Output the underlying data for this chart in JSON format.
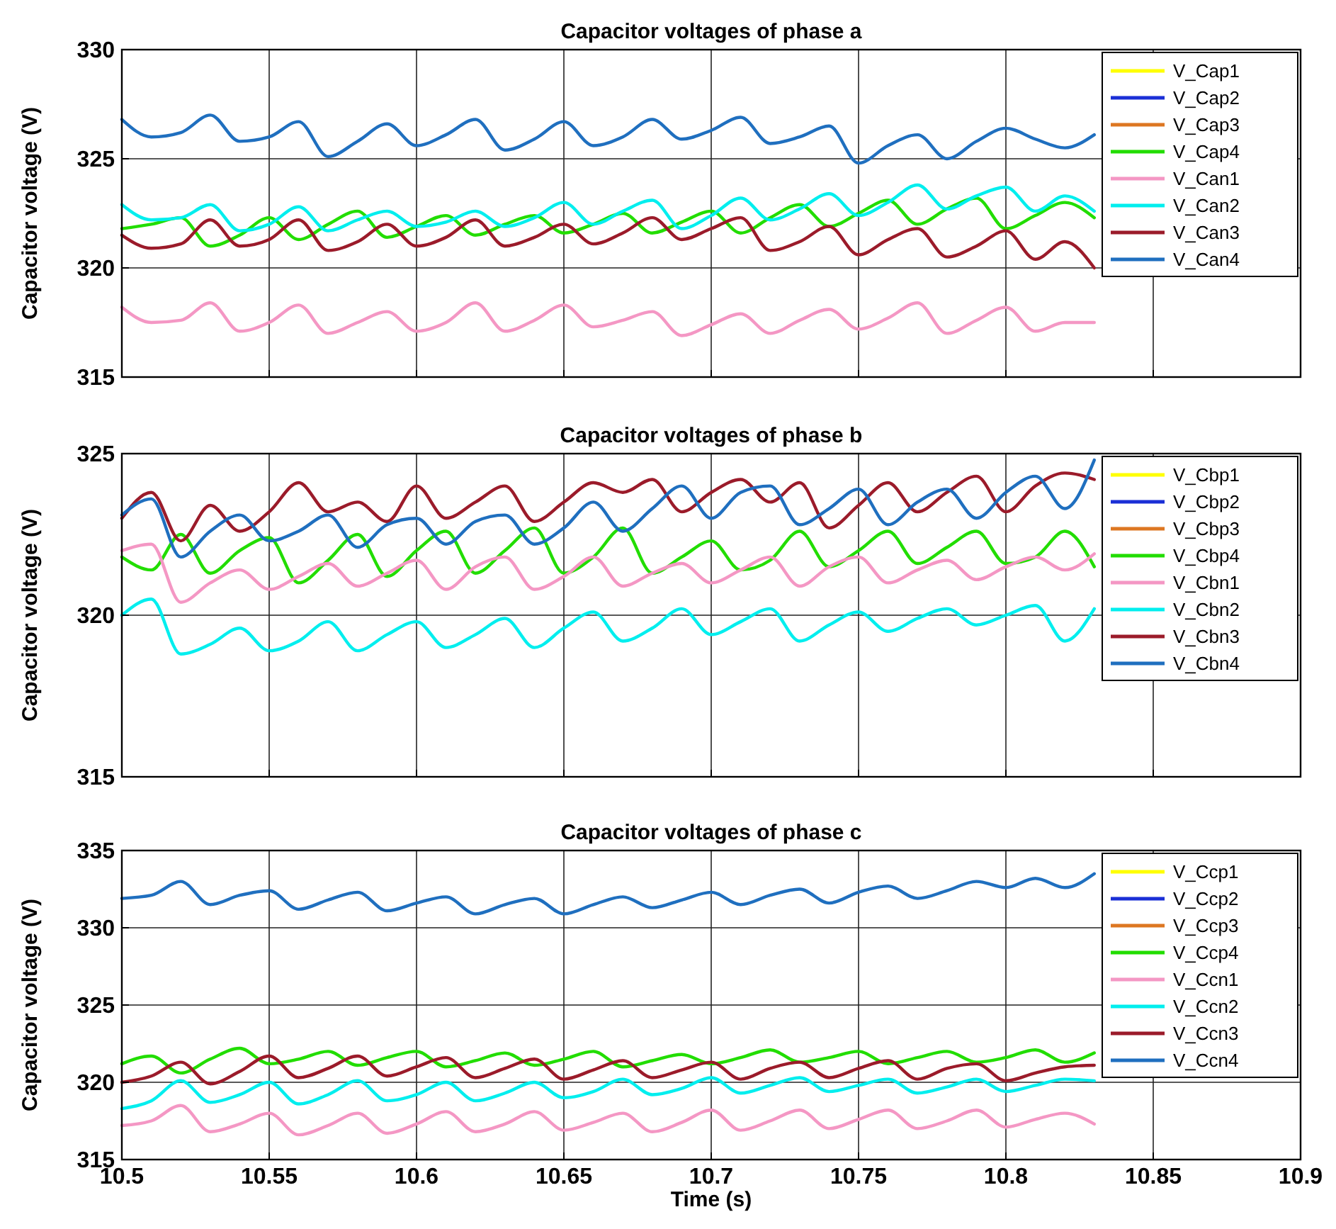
{
  "chart_data": [
    {
      "type": "line",
      "title": "Capacitor voltages of phase a",
      "ylabel": "Capacitor voltage (V)",
      "x": [
        10.5,
        10.51,
        10.52,
        10.53,
        10.54,
        10.55,
        10.56,
        10.57,
        10.58,
        10.59,
        10.6,
        10.61,
        10.62,
        10.63,
        10.64,
        10.65,
        10.66,
        10.67,
        10.68,
        10.69,
        10.7,
        10.71,
        10.72,
        10.73,
        10.74,
        10.75,
        10.76,
        10.77,
        10.78,
        10.79,
        10.8,
        10.81,
        10.82,
        10.83
      ],
      "xlim": [
        10.5,
        10.9
      ],
      "xticks": [
        10.5,
        10.55,
        10.6,
        10.65,
        10.7,
        10.75,
        10.8,
        10.85,
        10.9
      ],
      "ylim": [
        315,
        330
      ],
      "yticks": [
        315,
        320,
        325,
        330
      ],
      "grid": true,
      "legend": "top right",
      "tick_labels": "y",
      "series": [
        {
          "name": "V_Cap1",
          "color": "#ffff00",
          "values": [
            null,
            null,
            null,
            null,
            null,
            null,
            null,
            null,
            null,
            null,
            null,
            null,
            null,
            null,
            null,
            null,
            null,
            null,
            null,
            null,
            null,
            null,
            null,
            null,
            null,
            null,
            null,
            null,
            null,
            null,
            null,
            null,
            null,
            null
          ]
        },
        {
          "name": "V_Cap2",
          "color": "#1a2fd6",
          "values": [
            null,
            null,
            null,
            null,
            null,
            null,
            null,
            null,
            null,
            null,
            null,
            null,
            null,
            null,
            null,
            null,
            null,
            null,
            null,
            null,
            null,
            null,
            null,
            null,
            null,
            null,
            null,
            null,
            null,
            null,
            null,
            null,
            null,
            null
          ]
        },
        {
          "name": "V_Cap3",
          "color": "#dd7722",
          "values": [
            null,
            null,
            null,
            null,
            null,
            null,
            null,
            null,
            null,
            null,
            null,
            null,
            null,
            null,
            null,
            null,
            null,
            null,
            null,
            null,
            null,
            null,
            null,
            null,
            null,
            null,
            null,
            null,
            null,
            null,
            null,
            null,
            null,
            null
          ]
        },
        {
          "name": "V_Cap4",
          "color": "#22dd00",
          "values": [
            321.8,
            322.0,
            322.3,
            321.0,
            321.5,
            322.3,
            321.3,
            322.0,
            322.6,
            321.4,
            321.9,
            322.4,
            321.5,
            322.0,
            322.4,
            321.6,
            322.0,
            322.5,
            321.6,
            322.1,
            322.6,
            321.6,
            322.3,
            322.9,
            321.9,
            322.5,
            323.1,
            322.0,
            322.7,
            323.2,
            321.8,
            322.4,
            323.0,
            322.3
          ]
        },
        {
          "name": "V_Can1",
          "color": "#f497c4",
          "values": [
            318.2,
            317.5,
            317.6,
            318.4,
            317.1,
            317.5,
            318.3,
            317.0,
            317.5,
            318.0,
            317.1,
            317.5,
            318.4,
            317.1,
            317.6,
            318.3,
            317.3,
            317.6,
            318.0,
            316.9,
            317.4,
            317.9,
            317.0,
            317.6,
            318.1,
            317.2,
            317.7,
            318.4,
            317.0,
            317.6,
            318.2,
            317.1,
            317.5,
            317.5
          ]
        },
        {
          "name": "V_Can2",
          "color": "#00eeee",
          "values": [
            322.9,
            322.2,
            322.3,
            322.9,
            321.7,
            322.0,
            322.8,
            321.7,
            322.2,
            322.6,
            321.9,
            322.1,
            322.6,
            321.9,
            322.3,
            323.0,
            322.0,
            322.6,
            323.1,
            321.8,
            322.4,
            323.2,
            322.2,
            322.7,
            323.4,
            322.4,
            323.0,
            323.8,
            322.7,
            323.3,
            323.7,
            322.6,
            323.3,
            322.6
          ]
        },
        {
          "name": "V_Can3",
          "color": "#9b1b2a",
          "values": [
            321.5,
            320.9,
            321.1,
            322.2,
            321.0,
            321.3,
            322.2,
            320.8,
            321.2,
            322.0,
            321.0,
            321.4,
            322.2,
            321.0,
            321.4,
            322.0,
            321.1,
            321.6,
            322.3,
            321.3,
            321.8,
            322.3,
            320.8,
            321.2,
            321.9,
            320.6,
            321.3,
            321.8,
            320.5,
            321.0,
            321.7,
            320.4,
            321.2,
            320.0
          ]
        },
        {
          "name": "V_Can4",
          "color": "#1f6fbf",
          "values": [
            326.8,
            326.0,
            326.2,
            327.0,
            325.8,
            326.0,
            326.7,
            325.1,
            325.8,
            326.6,
            325.6,
            326.1,
            326.8,
            325.4,
            325.9,
            326.7,
            325.6,
            326.0,
            326.8,
            325.9,
            326.3,
            326.9,
            325.7,
            326.0,
            326.5,
            324.8,
            325.6,
            326.1,
            325.0,
            325.8,
            326.4,
            325.9,
            325.5,
            326.1
          ]
        }
      ]
    },
    {
      "type": "line",
      "title": "Capacitor voltages of phase b",
      "ylabel": "Capacitor voltage (V)",
      "x": [
        10.5,
        10.51,
        10.52,
        10.53,
        10.54,
        10.55,
        10.56,
        10.57,
        10.58,
        10.59,
        10.6,
        10.61,
        10.62,
        10.63,
        10.64,
        10.65,
        10.66,
        10.67,
        10.68,
        10.69,
        10.7,
        10.71,
        10.72,
        10.73,
        10.74,
        10.75,
        10.76,
        10.77,
        10.78,
        10.79,
        10.8,
        10.81,
        10.82,
        10.83
      ],
      "xlim": [
        10.5,
        10.9
      ],
      "xticks": [
        10.5,
        10.55,
        10.6,
        10.65,
        10.7,
        10.75,
        10.8,
        10.85,
        10.9
      ],
      "ylim": [
        315,
        325
      ],
      "yticks": [
        315,
        320,
        325
      ],
      "grid": true,
      "legend": "top right",
      "tick_labels": "y",
      "series": [
        {
          "name": "V_Cbp1",
          "color": "#ffff00",
          "values": [
            null,
            null,
            null,
            null,
            null,
            null,
            null,
            null,
            null,
            null,
            null,
            null,
            null,
            null,
            null,
            null,
            null,
            null,
            null,
            null,
            null,
            null,
            null,
            null,
            null,
            null,
            null,
            null,
            null,
            null,
            null,
            null,
            null,
            null
          ]
        },
        {
          "name": "V_Cbp2",
          "color": "#1a2fd6",
          "values": [
            null,
            null,
            null,
            null,
            null,
            null,
            null,
            null,
            null,
            null,
            null,
            null,
            null,
            null,
            null,
            null,
            null,
            null,
            null,
            null,
            null,
            null,
            null,
            null,
            null,
            null,
            null,
            null,
            null,
            null,
            null,
            null,
            null,
            null
          ]
        },
        {
          "name": "V_Cbp3",
          "color": "#dd7722",
          "values": [
            null,
            null,
            null,
            null,
            null,
            null,
            null,
            null,
            null,
            null,
            null,
            null,
            null,
            null,
            null,
            null,
            null,
            null,
            null,
            null,
            null,
            null,
            null,
            null,
            null,
            null,
            null,
            null,
            null,
            null,
            null,
            null,
            null,
            null
          ]
        },
        {
          "name": "V_Cbp4",
          "color": "#22dd00",
          "values": [
            321.8,
            321.4,
            322.5,
            321.3,
            322.0,
            322.4,
            321.0,
            321.7,
            322.5,
            321.2,
            322.0,
            322.6,
            321.3,
            322.0,
            322.7,
            321.3,
            321.8,
            322.7,
            321.3,
            321.8,
            322.3,
            321.4,
            321.7,
            322.6,
            321.5,
            322.0,
            322.6,
            321.6,
            322.1,
            322.6,
            321.6,
            321.8,
            322.6,
            321.5
          ]
        },
        {
          "name": "V_Cbn1",
          "color": "#f497c4",
          "values": [
            322.0,
            322.2,
            320.4,
            321.0,
            321.4,
            320.8,
            321.2,
            321.6,
            320.9,
            321.3,
            321.7,
            320.8,
            321.5,
            321.8,
            320.8,
            321.2,
            321.8,
            320.9,
            321.3,
            321.6,
            321.0,
            321.4,
            321.8,
            320.9,
            321.5,
            321.8,
            321.0,
            321.4,
            321.7,
            321.1,
            321.5,
            321.8,
            321.4,
            321.9
          ]
        },
        {
          "name": "V_Cbn2",
          "color": "#00eeee",
          "values": [
            320.0,
            320.5,
            318.8,
            319.1,
            319.6,
            318.9,
            319.2,
            319.8,
            318.9,
            319.4,
            319.8,
            319.0,
            319.4,
            319.9,
            319.0,
            319.6,
            320.1,
            319.2,
            319.6,
            320.2,
            319.4,
            319.8,
            320.2,
            319.2,
            319.7,
            320.1,
            319.5,
            319.9,
            320.2,
            319.7,
            320.0,
            320.3,
            319.2,
            320.2
          ]
        },
        {
          "name": "V_Cbn3",
          "color": "#9b1b2a",
          "values": [
            323.0,
            323.8,
            322.3,
            323.4,
            322.6,
            323.2,
            324.1,
            323.2,
            323.5,
            322.9,
            324.0,
            323.0,
            323.5,
            324.0,
            322.9,
            323.5,
            324.1,
            323.8,
            324.2,
            323.2,
            323.8,
            324.2,
            323.5,
            324.1,
            322.7,
            323.4,
            324.1,
            323.2,
            323.8,
            324.3,
            323.2,
            324.0,
            324.4,
            324.2
          ]
        },
        {
          "name": "V_Cbn4",
          "color": "#1f6fbf",
          "values": [
            323.1,
            323.6,
            321.8,
            322.6,
            323.1,
            322.3,
            322.6,
            323.1,
            322.1,
            322.8,
            323.0,
            322.2,
            322.9,
            323.1,
            322.2,
            322.7,
            323.5,
            322.6,
            323.3,
            324.0,
            323.0,
            323.8,
            324.0,
            322.8,
            323.3,
            323.9,
            322.8,
            323.5,
            323.9,
            323.0,
            323.8,
            324.3,
            323.3,
            324.8
          ]
        }
      ]
    },
    {
      "type": "line",
      "title": "Capacitor voltages of phase c",
      "xlabel": "Time (s)",
      "ylabel": "Capacitor voltage (V)",
      "x": [
        10.5,
        10.51,
        10.52,
        10.53,
        10.54,
        10.55,
        10.56,
        10.57,
        10.58,
        10.59,
        10.6,
        10.61,
        10.62,
        10.63,
        10.64,
        10.65,
        10.66,
        10.67,
        10.68,
        10.69,
        10.7,
        10.71,
        10.72,
        10.73,
        10.74,
        10.75,
        10.76,
        10.77,
        10.78,
        10.79,
        10.8,
        10.81,
        10.82,
        10.83
      ],
      "xlim": [
        10.5,
        10.9
      ],
      "xticks": [
        10.5,
        10.55,
        10.6,
        10.65,
        10.7,
        10.75,
        10.8,
        10.85,
        10.9
      ],
      "ylim": [
        315,
        335
      ],
      "yticks": [
        315,
        320,
        325,
        330,
        335
      ],
      "grid": true,
      "legend": "top right",
      "series": [
        {
          "name": "V_Ccp1",
          "color": "#ffff00",
          "values": [
            null,
            null,
            null,
            null,
            null,
            null,
            null,
            null,
            null,
            null,
            null,
            null,
            null,
            null,
            null,
            null,
            null,
            null,
            null,
            null,
            null,
            null,
            null,
            null,
            null,
            null,
            null,
            null,
            null,
            null,
            null,
            null,
            null,
            null
          ]
        },
        {
          "name": "V_Ccp2",
          "color": "#1a2fd6",
          "values": [
            null,
            null,
            null,
            null,
            null,
            null,
            null,
            null,
            null,
            null,
            null,
            null,
            null,
            null,
            null,
            null,
            null,
            null,
            null,
            null,
            null,
            null,
            null,
            null,
            null,
            null,
            null,
            null,
            null,
            null,
            null,
            null,
            null,
            null
          ]
        },
        {
          "name": "V_Ccp3",
          "color": "#dd7722",
          "values": [
            null,
            null,
            null,
            null,
            null,
            null,
            null,
            null,
            null,
            null,
            null,
            null,
            null,
            null,
            null,
            null,
            null,
            null,
            null,
            null,
            null,
            null,
            null,
            null,
            null,
            null,
            null,
            null,
            null,
            null,
            null,
            null,
            null,
            null
          ]
        },
        {
          "name": "V_Ccp4",
          "color": "#22dd00",
          "values": [
            321.2,
            321.7,
            320.6,
            321.5,
            322.2,
            321.2,
            321.5,
            322.0,
            321.1,
            321.6,
            322.0,
            321.0,
            321.4,
            321.9,
            321.1,
            321.5,
            322.0,
            321.0,
            321.4,
            321.8,
            321.2,
            321.6,
            322.1,
            321.3,
            321.6,
            322.0,
            321.2,
            321.6,
            322.0,
            321.3,
            321.6,
            322.1,
            321.3,
            321.9
          ]
        },
        {
          "name": "V_Ccn1",
          "color": "#f497c4",
          "values": [
            317.2,
            317.5,
            318.5,
            316.8,
            317.3,
            318.0,
            316.6,
            317.2,
            318.0,
            316.7,
            317.3,
            318.1,
            316.8,
            317.3,
            318.1,
            316.9,
            317.4,
            318.0,
            316.8,
            317.4,
            318.2,
            316.9,
            317.5,
            318.2,
            317.0,
            317.6,
            318.2,
            317.0,
            317.5,
            318.2,
            317.1,
            317.6,
            318.0,
            317.3
          ]
        },
        {
          "name": "V_Ccn2",
          "color": "#00eeee",
          "values": [
            318.3,
            318.8,
            320.1,
            318.7,
            319.2,
            320.0,
            318.6,
            319.2,
            320.1,
            318.8,
            319.2,
            320.0,
            318.8,
            319.3,
            320.0,
            319.0,
            319.4,
            320.2,
            319.2,
            319.6,
            320.3,
            319.3,
            319.8,
            320.3,
            319.4,
            319.8,
            320.2,
            319.3,
            319.7,
            320.2,
            319.4,
            319.8,
            320.2,
            320.1
          ]
        },
        {
          "name": "V_Ccn3",
          "color": "#9b1b2a",
          "values": [
            320.0,
            320.4,
            321.3,
            319.9,
            320.7,
            321.7,
            320.3,
            320.9,
            321.7,
            320.4,
            321.0,
            321.6,
            320.3,
            320.9,
            321.5,
            320.2,
            320.8,
            321.4,
            320.3,
            320.8,
            321.3,
            320.2,
            320.9,
            321.3,
            320.3,
            320.9,
            321.4,
            320.2,
            320.9,
            321.2,
            320.1,
            320.6,
            321.0,
            321.1
          ]
        },
        {
          "name": "V_Ccn4",
          "color": "#1f6fbf",
          "values": [
            331.9,
            332.1,
            333.0,
            331.5,
            332.1,
            332.4,
            331.2,
            331.8,
            332.3,
            331.1,
            331.6,
            332.0,
            330.9,
            331.5,
            331.9,
            330.9,
            331.5,
            332.0,
            331.3,
            331.8,
            332.3,
            331.5,
            332.1,
            332.5,
            331.6,
            332.3,
            332.7,
            331.9,
            332.4,
            333.0,
            332.6,
            333.2,
            332.6,
            333.5
          ]
        }
      ]
    }
  ]
}
